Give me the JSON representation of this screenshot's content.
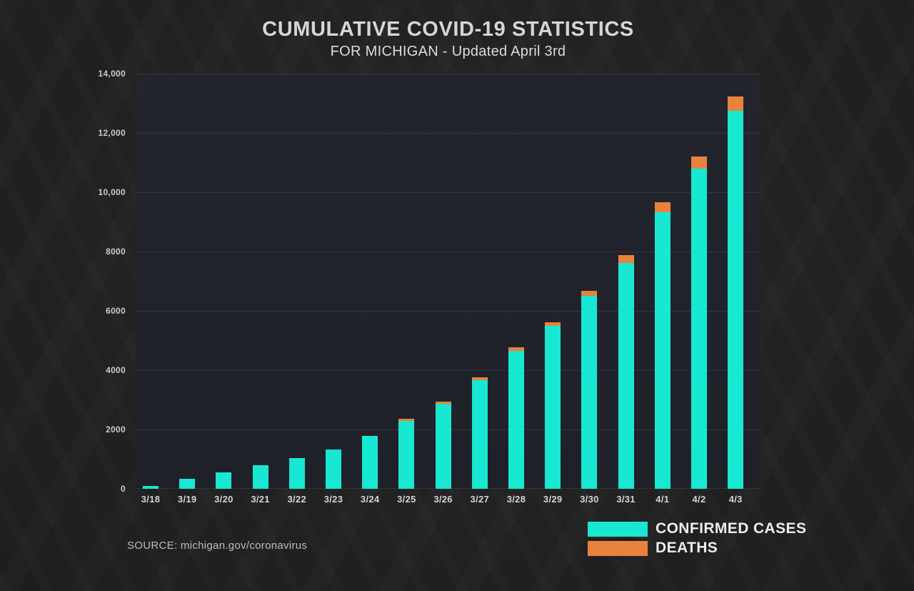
{
  "header": {
    "title": "CUMULATIVE COVID-19 STATISTICS",
    "subtitle": "FOR MICHIGAN - Updated April 3rd"
  },
  "source_note": "SOURCE: michigan.gov/coronavirus",
  "colors": {
    "confirmed_cases": "#18e7d2",
    "deaths": "#e8823c",
    "background": "#232323",
    "plot_background": "#22242d",
    "gridline": "rgba(255,255,255,0.09)",
    "axis_text": "#cbcbcb",
    "title_text": "#d6d6d6"
  },
  "chart_data": {
    "type": "bar",
    "stacked": true,
    "title": "CUMULATIVE COVID-19 STATISTICS",
    "subtitle": "FOR MICHIGAN - Updated April 3rd",
    "categories": [
      "3/18",
      "3/19",
      "3/20",
      "3/21",
      "3/22",
      "3/23",
      "3/24",
      "3/25",
      "3/26",
      "3/27",
      "3/28",
      "3/29",
      "3/30",
      "3/31",
      "4/1",
      "4/2",
      "4/3"
    ],
    "series": [
      {
        "name": "CONFIRMED CASES",
        "color": "#18e7d2",
        "values": [
          80,
          334,
          549,
          787,
          1035,
          1328,
          1791,
          2295,
          2856,
          3657,
          4650,
          5486,
          6498,
          7615,
          9334,
          10791,
          12744
        ]
      },
      {
        "name": "DEATHS",
        "color": "#e8823c",
        "values": [
          1,
          3,
          5,
          8,
          9,
          15,
          24,
          43,
          60,
          92,
          111,
          132,
          184,
          259,
          337,
          417,
          479
        ]
      }
    ],
    "xlabel": "",
    "ylabel": "",
    "ylim": [
      0,
      14000
    ],
    "yticks": [
      {
        "value": 0,
        "label": "0"
      },
      {
        "value": 2000,
        "label": "2000"
      },
      {
        "value": 4000,
        "label": "4000"
      },
      {
        "value": 6000,
        "label": "6000"
      },
      {
        "value": 8000,
        "label": "8000"
      },
      {
        "value": 10000,
        "label": "10,000"
      },
      {
        "value": 12000,
        "label": "12,000"
      },
      {
        "value": 14000,
        "label": "14,000"
      }
    ],
    "grid": "horizontal",
    "legend_position": "bottom-right"
  }
}
